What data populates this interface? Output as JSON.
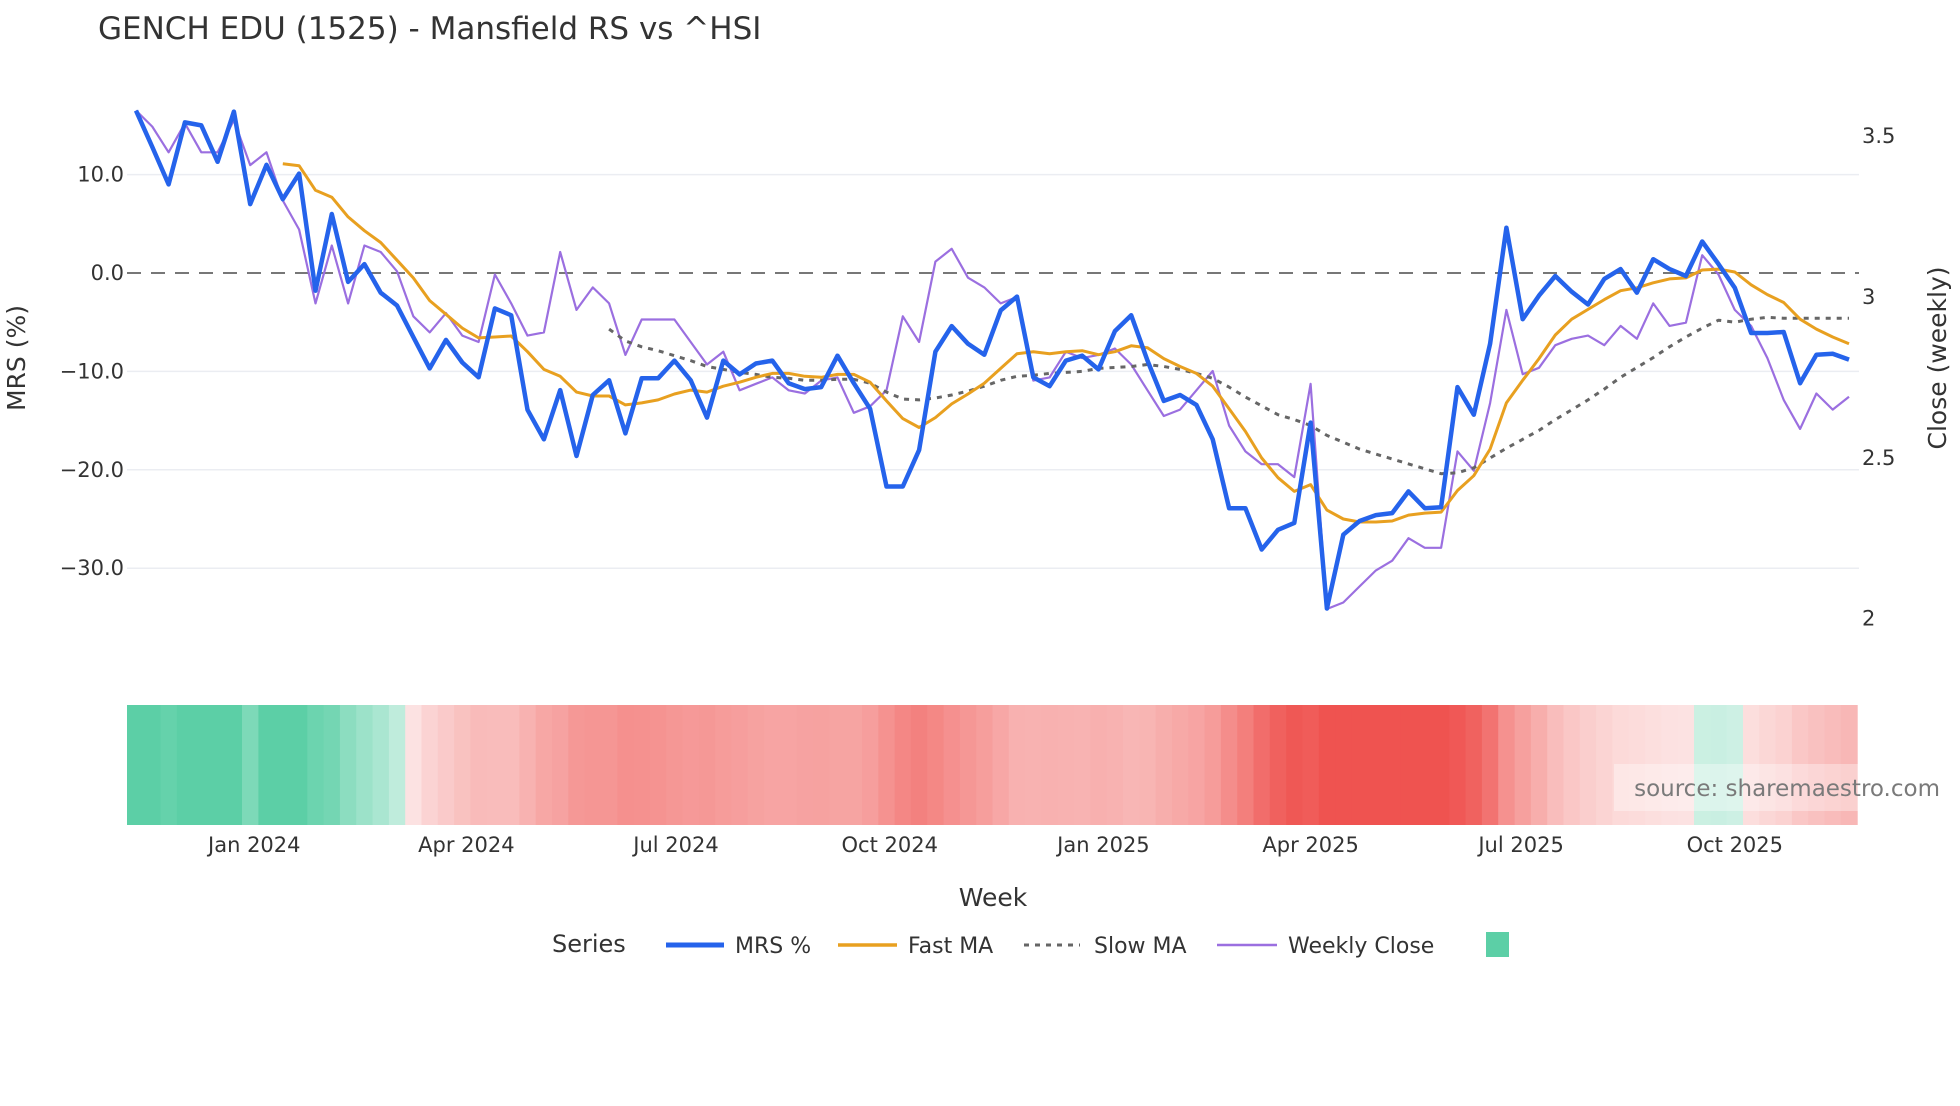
{
  "chart_data": {
    "type": "line",
    "title": "GENCH EDU (1525) - Mansfield RS vs ^HSI",
    "xlabel": "Week",
    "ylabel": "MRS (%)",
    "y2label": "Close (weekly)",
    "ylim": [
      -36,
      19
    ],
    "y2lim": [
      1.82,
      3.69
    ],
    "yticks": [
      "10.0",
      "0.0",
      "−10.0",
      "−20.0",
      "−30.0"
    ],
    "ytick_values": [
      10,
      0,
      -10,
      -20,
      -30
    ],
    "y2ticks": [
      "3.5",
      "3",
      "2.5",
      "2"
    ],
    "y2tick_values": [
      3.5,
      3,
      2.5,
      2
    ],
    "xticks": [
      "Jan 2024",
      "Apr 2024",
      "Jul 2024",
      "Oct 2024",
      "Jan 2025",
      "Apr 2025",
      "Jul 2025",
      "Oct 2025"
    ],
    "xtick_week_index": [
      7.25,
      20.25,
      33.1,
      46.2,
      59.3,
      72.0,
      84.9,
      98.0
    ],
    "zero_line": 0,
    "grid": true,
    "legend_title": "Series",
    "legend_position": "bottom-center",
    "series": [
      {
        "name": "MRS %",
        "color": "#2563eb",
        "axis": "left",
        "start_index": 0,
        "values": [
          16.5,
          12.8,
          9.0,
          15.3,
          15.0,
          11.3,
          16.4,
          7.0,
          11.0,
          7.5,
          10.1,
          -1.8,
          6.0,
          -0.9,
          0.9,
          -2.0,
          -3.3,
          -6.5,
          -9.7,
          -6.8,
          -9.1,
          -10.6,
          -3.6,
          -4.3,
          -13.9,
          -16.9,
          -11.9,
          -18.6,
          -12.4,
          -10.9,
          -16.3,
          -10.7,
          -10.7,
          -8.9,
          -10.9,
          -14.7,
          -8.9,
          -10.3,
          -9.2,
          -8.9,
          -11.2,
          -11.8,
          -11.6,
          -8.4,
          -11.2,
          -13.8,
          -21.7,
          -21.7,
          -18.0,
          -8.0,
          -5.4,
          -7.2,
          -8.3,
          -3.8,
          -2.4,
          -10.6,
          -11.5,
          -8.9,
          -8.4,
          -9.8,
          -5.9,
          -4.3,
          -8.9,
          -13.0,
          -12.4,
          -13.4,
          -16.9,
          -23.9,
          -23.9,
          -28.1,
          -26.1,
          -25.4,
          -15.2,
          -34.1,
          -26.6,
          -25.2,
          -24.6,
          -24.4,
          -22.2,
          -23.9,
          -23.8,
          -11.6,
          -14.4,
          -7.2,
          4.6,
          -4.7,
          -2.3,
          -0.3,
          -1.9,
          -3.2,
          -0.6,
          0.4,
          -2.0,
          1.4,
          0.4,
          -0.3,
          3.2,
          0.9,
          -1.5,
          -6.1,
          -6.1,
          -6.0,
          -11.2,
          -8.3,
          -8.2,
          -8.8
        ]
      },
      {
        "name": "Fast MA",
        "color": "#e8a020",
        "axis": "left",
        "start_index": 9,
        "values": [
          11.1,
          10.9,
          8.4,
          7.7,
          5.7,
          4.3,
          3.1,
          1.3,
          -0.5,
          -2.8,
          -4.2,
          -5.6,
          -6.6,
          -6.5,
          -6.4,
          -8.0,
          -9.8,
          -10.5,
          -12.1,
          -12.5,
          -12.5,
          -13.4,
          -13.2,
          -12.9,
          -12.3,
          -11.9,
          -12.1,
          -11.5,
          -11.1,
          -10.6,
          -10.2,
          -10.2,
          -10.5,
          -10.6,
          -10.3,
          -10.3,
          -11.1,
          -13.0,
          -14.8,
          -15.7,
          -14.7,
          -13.3,
          -12.3,
          -11.2,
          -9.7,
          -8.2,
          -8.0,
          -8.2,
          -8.0,
          -7.9,
          -8.3,
          -8.0,
          -7.4,
          -7.6,
          -8.7,
          -9.5,
          -10.2,
          -11.5,
          -13.8,
          -16.1,
          -18.8,
          -20.8,
          -22.2,
          -21.5,
          -24.1,
          -25.0,
          -25.3,
          -25.3,
          -25.2,
          -24.6,
          -24.4,
          -24.3,
          -22.1,
          -20.6,
          -17.9,
          -13.2,
          -10.9,
          -8.7,
          -6.3,
          -4.7,
          -3.7,
          -2.7,
          -1.8,
          -1.5,
          -1.0,
          -0.6,
          -0.5,
          0.3,
          0.4,
          0.1,
          -1.2,
          -2.2,
          -3.0,
          -4.7,
          -5.7,
          -6.5,
          -7.2
        ]
      },
      {
        "name": "Slow MA",
        "color": "#666666",
        "axis": "left",
        "start_index": 29,
        "values": [
          -5.7,
          -6.9,
          -7.5,
          -7.9,
          -8.4,
          -8.9,
          -9.5,
          -9.8,
          -10.1,
          -10.3,
          -10.6,
          -10.7,
          -10.9,
          -10.9,
          -10.8,
          -10.8,
          -11.2,
          -12.1,
          -12.8,
          -12.9,
          -12.7,
          -12.4,
          -12.0,
          -11.5,
          -10.9,
          -10.5,
          -10.4,
          -10.2,
          -10.1,
          -10.0,
          -9.7,
          -9.6,
          -9.5,
          -9.3,
          -9.5,
          -9.8,
          -10.2,
          -10.7,
          -11.6,
          -12.6,
          -13.5,
          -14.4,
          -14.9,
          -15.5,
          -16.5,
          -17.2,
          -17.9,
          -18.4,
          -18.9,
          -19.4,
          -19.9,
          -20.4,
          -20.3,
          -19.8,
          -18.8,
          -17.8,
          -16.9,
          -16.0,
          -14.9,
          -13.9,
          -12.9,
          -11.8,
          -10.6,
          -9.6,
          -8.6,
          -7.5,
          -6.5,
          -5.6,
          -4.8,
          -5.0,
          -4.7,
          -4.5,
          -4.6,
          -4.6,
          -4.6,
          -4.6,
          -4.6
        ]
      },
      {
        "name": "Weekly Close",
        "color": "#9b6fe0",
        "axis": "right",
        "start_index": 0,
        "values": [
          3.58,
          3.53,
          3.45,
          3.54,
          3.45,
          3.45,
          3.55,
          3.41,
          3.45,
          3.3,
          3.21,
          2.98,
          3.16,
          2.98,
          3.16,
          3.14,
          3.08,
          2.94,
          2.89,
          2.95,
          2.88,
          2.86,
          3.07,
          2.98,
          2.88,
          2.89,
          3.14,
          2.96,
          3.03,
          2.98,
          2.82,
          2.93,
          2.93,
          2.93,
          2.86,
          2.79,
          2.83,
          2.71,
          2.73,
          2.75,
          2.71,
          2.7,
          2.74,
          2.75,
          2.64,
          2.66,
          2.71,
          2.94,
          2.86,
          3.11,
          3.15,
          3.06,
          3.03,
          2.98,
          3.0,
          2.74,
          2.75,
          2.83,
          2.81,
          2.82,
          2.84,
          2.79,
          2.71,
          2.63,
          2.65,
          2.71,
          2.77,
          2.6,
          2.52,
          2.48,
          2.48,
          2.44,
          2.73,
          2.03,
          2.05,
          2.1,
          2.15,
          2.18,
          2.25,
          2.22,
          2.22,
          2.52,
          2.46,
          2.67,
          2.96,
          2.76,
          2.78,
          2.85,
          2.87,
          2.88,
          2.85,
          2.91,
          2.87,
          2.98,
          2.91,
          2.92,
          3.13,
          3.07,
          2.96,
          2.91,
          2.81,
          2.68,
          2.59,
          2.7,
          2.65,
          2.69
        ]
      }
    ],
    "heatmap": {
      "source": "Fast MA (MRS % before available)",
      "positive_color": "#5ccfa6",
      "negative_color": "#ef5350",
      "neutral_color": "#ffffff"
    }
  },
  "watermark": "source: sharemaestro.com",
  "colors": {
    "grid": "#ebedf2",
    "zero_line": "#777777"
  }
}
